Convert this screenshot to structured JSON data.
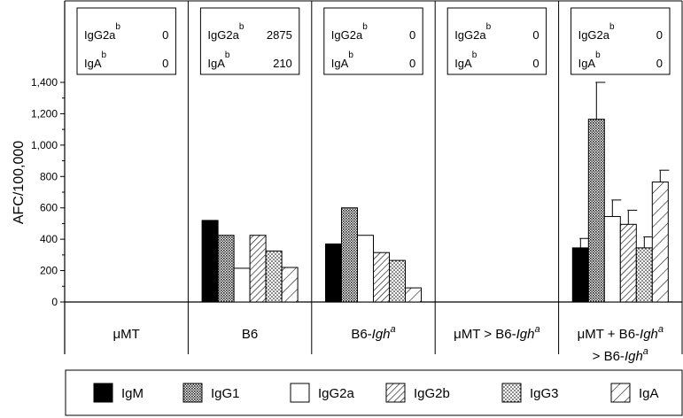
{
  "chart_data": {
    "type": "bar",
    "ylabel": "AFC/100,000",
    "ylim": [
      0,
      1500
    ],
    "yticks": [
      0,
      200,
      400,
      600,
      800,
      1000,
      1200,
      1400
    ],
    "ytick_labels": [
      "0",
      "200",
      "400",
      "600",
      "800",
      "1,000",
      "1,200",
      "1,400"
    ],
    "groups": [
      {
        "label": "μMT",
        "label_lines": [
          [
            {
              "t": "μMT"
            }
          ]
        ],
        "values": [
          0,
          0,
          0,
          0,
          0,
          0
        ],
        "errors": [
          0,
          0,
          0,
          0,
          0,
          0
        ],
        "inset": {
          "rows": [
            {
              "name": "IgG2a",
              "sup": "b",
              "value": "0"
            },
            {
              "name": "IgA",
              "sup": "b",
              "value": "0"
            }
          ]
        }
      },
      {
        "label": "B6",
        "label_lines": [
          [
            {
              "t": "B6"
            }
          ]
        ],
        "values": [
          520,
          425,
          215,
          425,
          325,
          220
        ],
        "errors": [
          0,
          0,
          0,
          0,
          0,
          0
        ],
        "inset": {
          "rows": [
            {
              "name": "IgG2a",
              "sup": "b",
              "value": "2875"
            },
            {
              "name": "IgA",
              "sup": "b",
              "value": "210"
            }
          ]
        }
      },
      {
        "label": "B6-Igha",
        "label_lines": [
          [
            {
              "t": "B6-"
            },
            {
              "t": "Igh",
              "i": true
            },
            {
              "t": "a",
              "i": true,
              "sup": true
            }
          ]
        ],
        "values": [
          370,
          600,
          425,
          315,
          265,
          90
        ],
        "errors": [
          0,
          0,
          0,
          0,
          0,
          0
        ],
        "inset": {
          "rows": [
            {
              "name": "IgG2a",
              "sup": "b",
              "value": "0"
            },
            {
              "name": "IgA",
              "sup": "b",
              "value": "0"
            }
          ]
        }
      },
      {
        "label": "μMT > B6-Igha",
        "label_lines": [
          [
            {
              "t": "μMT > B6-"
            },
            {
              "t": "Igh",
              "i": true
            },
            {
              "t": "a",
              "i": true,
              "sup": true
            }
          ]
        ],
        "values": [
          0,
          0,
          0,
          0,
          0,
          0
        ],
        "errors": [
          0,
          0,
          0,
          0,
          0,
          0
        ],
        "inset": {
          "rows": [
            {
              "name": "IgG2a",
              "sup": "b",
              "value": "0"
            },
            {
              "name": "IgA",
              "sup": "b",
              "value": "0"
            }
          ]
        }
      },
      {
        "label": "μMT + B6-Igha > B6-Igha",
        "label_lines": [
          [
            {
              "t": "μMT + B6-"
            },
            {
              "t": "Igh",
              "i": true
            },
            {
              "t": "a",
              "i": true,
              "sup": true
            }
          ],
          [
            {
              "t": "> B6-"
            },
            {
              "t": "Igh",
              "i": true
            },
            {
              "t": "a",
              "i": true,
              "sup": true
            }
          ]
        ],
        "values": [
          345,
          1165,
          545,
          495,
          345,
          765
        ],
        "errors": [
          60,
          235,
          105,
          90,
          70,
          75
        ],
        "inset": {
          "rows": [
            {
              "name": "IgG2a",
              "sup": "b",
              "value": "0"
            },
            {
              "name": "IgA",
              "sup": "b",
              "value": "0"
            }
          ]
        }
      }
    ],
    "series": [
      {
        "name": "IgM",
        "pattern": "solid"
      },
      {
        "name": "IgG1",
        "pattern": "crosshatch"
      },
      {
        "name": "IgG2a",
        "pattern": "empty"
      },
      {
        "name": "IgG2b",
        "pattern": "diagonal"
      },
      {
        "name": "IgG3",
        "pattern": "dots"
      },
      {
        "name": "IgA",
        "pattern": "wide-diagonal"
      }
    ],
    "legend_position": "bottom",
    "grid": false
  }
}
